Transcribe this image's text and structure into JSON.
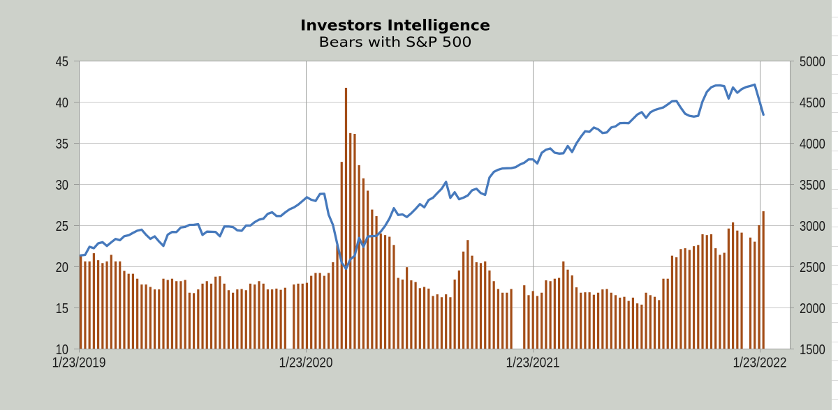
{
  "title": {
    "text": "Investors Intelligence"
  },
  "subtitle": {
    "text": "Bears with S&P 500"
  },
  "colors": {
    "background": "#cdd1ca",
    "plot_background": "#ffffff",
    "bar": "#a34d17",
    "line": "#4679bc",
    "grid_horizontal": "#c8c8c8",
    "grid_vertical": "#a0a2a0",
    "axis": "#999b98",
    "text": "#1a1a1a",
    "sheet_cell": "#ffffff",
    "sheet_gridline": "#d9d9d9"
  },
  "chart_data": {
    "type": "combo",
    "title": "Investors Intelligence",
    "subtitle": "Bears with S&P 500",
    "left_axis": {
      "min": 10,
      "max": 45,
      "step": 5,
      "tick_labels": [
        "45",
        "40",
        "35",
        "30",
        "25",
        "20",
        "15",
        "10"
      ]
    },
    "right_axis": {
      "min": 1500,
      "max": 5000,
      "step": 500,
      "tick_labels": [
        "5000",
        "4500",
        "4000",
        "3500",
        "3000",
        "2500",
        "2000",
        "1500"
      ]
    },
    "x_axis": {
      "tick_labels": [
        "1/23/2019",
        "1/23/2020",
        "1/23/2021",
        "1/23/2022"
      ],
      "tick_week_indices": [
        0,
        52,
        104,
        156
      ],
      "weeks_total": 158
    },
    "series": [
      {
        "name": "Bears %",
        "type": "bar",
        "axis": "left",
        "values": [
          21.3,
          20.6,
          20.6,
          21.6,
          20.75,
          20.4,
          20.6,
          21.4,
          20.6,
          20.6,
          19.45,
          19.1,
          19.1,
          18.5,
          17.8,
          17.8,
          17.5,
          17.2,
          17.2,
          18.5,
          18.35,
          18.5,
          18.2,
          18.2,
          18.35,
          16.8,
          16.75,
          17.2,
          17.9,
          18.2,
          17.9,
          18.75,
          18.8,
          17.9,
          17.1,
          16.8,
          17.2,
          17.25,
          17.1,
          17.9,
          17.8,
          18.2,
          17.9,
          17.2,
          17.2,
          17.3,
          17.15,
          17.4,
          null,
          17.8,
          17.9,
          17.9,
          18.0,
          18.85,
          19.2,
          19.2,
          18.85,
          19.2,
          20.5,
          22.6,
          32.7,
          41.7,
          36.2,
          36.1,
          32.3,
          30.7,
          29.2,
          26.9,
          26.1,
          24.0,
          23.8,
          23.6,
          22.6,
          18.6,
          18.4,
          19.9,
          18.3,
          18.1,
          17.35,
          17.5,
          17.3,
          16.4,
          16.6,
          16.25,
          16.6,
          16.25,
          18.4,
          19.5,
          21.8,
          23.2,
          21.3,
          20.5,
          20.4,
          20.6,
          19.5,
          18.2,
          17.25,
          16.8,
          16.8,
          17.25,
          null,
          null,
          17.7,
          16.5,
          17.0,
          16.4,
          16.8,
          18.3,
          18.2,
          18.5,
          18.6,
          20.6,
          19.6,
          18.9,
          17.45,
          16.8,
          16.85,
          16.85,
          16.55,
          16.8,
          17.2,
          17.25,
          16.8,
          16.5,
          16.2,
          16.3,
          15.8,
          16.2,
          15.5,
          15.35,
          16.8,
          16.5,
          16.3,
          15.9,
          18.5,
          18.5,
          21.3,
          21.1,
          22.1,
          22.2,
          22.0,
          22.45,
          22.6,
          23.9,
          23.8,
          23.9,
          22.2,
          21.4,
          21.65,
          24.6,
          25.35,
          24.35,
          24.1,
          null,
          23.5,
          23.0,
          25.0,
          26.7
        ]
      },
      {
        "name": "S&P 500",
        "type": "line",
        "axis": "right",
        "values": [
          2633,
          2640,
          2738,
          2720,
          2780,
          2794,
          2748,
          2792,
          2833,
          2818,
          2867,
          2878,
          2907,
          2934,
          2946,
          2884,
          2834,
          2864,
          2802,
          2748,
          2886,
          2918,
          2917,
          2973,
          2980,
          3004,
          3005,
          3013,
          2882,
          2922,
          2920,
          2918,
          2866,
          2985,
          2985,
          2978,
          2938,
          2932,
          2996,
          2996,
          3037,
          3068,
          3080,
          3138,
          3158,
          3112,
          3112,
          3155,
          3192,
          3216,
          3250,
          3295,
          3340,
          3310,
          3295,
          3380,
          3382,
          3128,
          3003,
          2770,
          2545,
          2470,
          2585,
          2630,
          2846,
          2737,
          2863,
          2868,
          2870,
          2923,
          2992,
          3081,
          3207,
          3125,
          3131,
          3100,
          3145,
          3198,
          3257,
          3218,
          3307,
          3334,
          3390,
          3444,
          3527,
          3332,
          3401,
          3316,
          3335,
          3361,
          3425,
          3443,
          3391,
          3369,
          3580,
          3648,
          3675,
          3690,
          3692,
          3694,
          3705,
          3737,
          3760,
          3800,
          3800,
          3751,
          3880,
          3918,
          3933,
          3881,
          3870,
          3875,
          3963,
          3890,
          3995,
          4074,
          4142,
          4135,
          4187,
          4165,
          4120,
          4128,
          4188,
          4202,
          4240,
          4242,
          4240,
          4292,
          4345,
          4375,
          4305,
          4372,
          4400,
          4417,
          4432,
          4468,
          4507,
          4510,
          4428,
          4355,
          4330,
          4320,
          4330,
          4505,
          4620,
          4677,
          4698,
          4700,
          4690,
          4540,
          4675,
          4610,
          4654,
          4679,
          4692,
          4709,
          4526,
          4343
        ]
      }
    ]
  }
}
